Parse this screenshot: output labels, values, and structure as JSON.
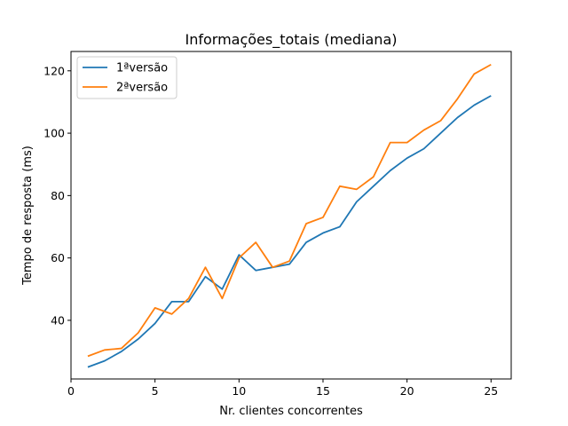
{
  "chart_data": {
    "type": "line",
    "title": "Informações_totais (mediana)",
    "xlabel": "Nr. clientes concorrentes",
    "ylabel": "Tempo de resposta (ms)",
    "xlim": [
      0,
      26.2
    ],
    "ylim": [
      21.2,
      126.2
    ],
    "xticks": [
      0,
      5,
      10,
      15,
      20,
      25
    ],
    "yticks": [
      40,
      60,
      80,
      100,
      120
    ],
    "legend_position": "top-left",
    "grid": false,
    "x": [
      1,
      2,
      3,
      4,
      5,
      6,
      7,
      8,
      9,
      10,
      11,
      12,
      13,
      14,
      15,
      16,
      17,
      18,
      19,
      20,
      21,
      22,
      23,
      24,
      25
    ],
    "series": [
      {
        "name": "1ªversão",
        "color": "#1f77b4",
        "values": [
          25,
          27,
          30,
          34,
          39,
          46,
          46,
          54,
          50,
          61,
          56,
          57,
          58,
          65,
          68,
          70,
          78,
          83,
          88,
          92,
          95,
          100,
          105,
          109,
          112
        ]
      },
      {
        "name": "2ªversão",
        "color": "#ff7f0e",
        "values": [
          28.5,
          30.5,
          31,
          36,
          44,
          42,
          47,
          57,
          47,
          60,
          65,
          57,
          59,
          71,
          73,
          83,
          82,
          86,
          97,
          97,
          101,
          104,
          111,
          119,
          122
        ]
      }
    ]
  }
}
